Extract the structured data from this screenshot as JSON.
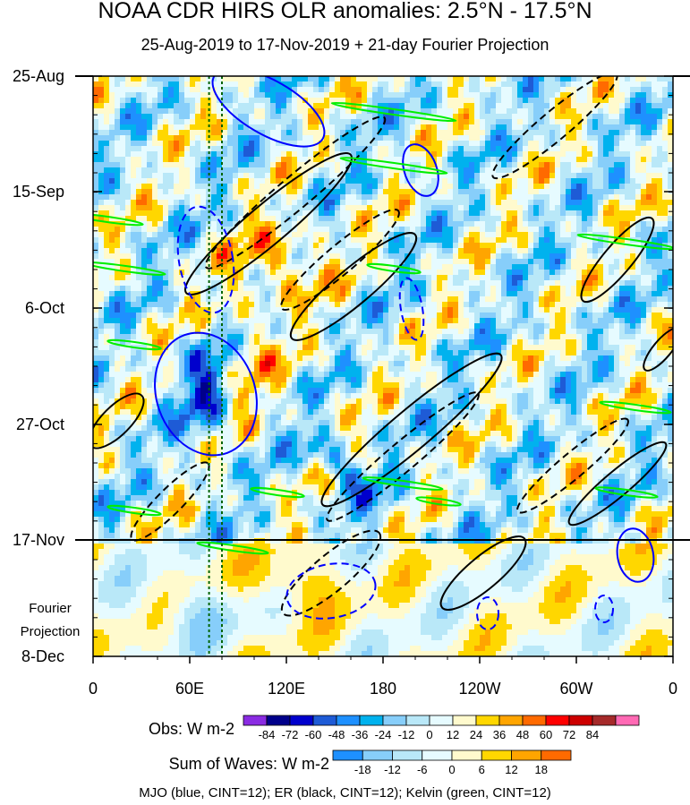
{
  "chart_data": {
    "type": "heatmap",
    "title": "NOAA CDR HIRS OLR anomalies: 2.5°N - 17.5°N",
    "subtitle": "25-Aug-2019 to 17-Nov-2019 + 21-day Fourier Projection",
    "x_axis": {
      "ticks": [
        "0",
        "60E",
        "120E",
        "180",
        "120W",
        "60W",
        "0"
      ],
      "tick_values_deg_east": [
        0,
        60,
        120,
        180,
        240,
        300,
        360
      ],
      "xlim": [
        0,
        360
      ]
    },
    "y_axis": {
      "ticks": [
        "25-Aug",
        "15-Sep",
        "6-Oct",
        "27-Oct",
        "17-Nov",
        "8-Dec"
      ],
      "direction": "time increases downward",
      "projection_label": "Fourier Projection"
    },
    "observed_end_date": "17-Nov",
    "reference_lines_deg_east": [
      72,
      80
    ],
    "obs_colorbar": {
      "title": "Obs: W m-2",
      "levels": [
        "-84",
        "-72",
        "-60",
        "-48",
        "-36",
        "-24",
        "-12",
        "0",
        "12",
        "24",
        "36",
        "48",
        "60",
        "72",
        "84"
      ],
      "colors": [
        "#8a2be2",
        "#00008b",
        "#0000cd",
        "#1e5bd6",
        "#1e90ff",
        "#00b2ee",
        "#87cefa",
        "#b9e8f8",
        "#e6fbff",
        "#fffacd",
        "#ffd700",
        "#ffa500",
        "#ff6a00",
        "#ff0000",
        "#cd0000",
        "#a52a2a",
        "#ff69b4"
      ]
    },
    "waves_colorbar": {
      "title": "Sum of Waves: W m-2",
      "levels": [
        "-18",
        "-12",
        "-6",
        "0",
        "6",
        "12",
        "18"
      ],
      "colors": [
        "#1e90ff",
        "#87cefa",
        "#b9e8f8",
        "#e6fbff",
        "#fffacd",
        "#ffd700",
        "#ffa500",
        "#ff6a00"
      ]
    },
    "contours": [
      {
        "name": "MJO",
        "color": "#0000ff"
      },
      {
        "name": "ER",
        "color": "#000000"
      },
      {
        "name": "Kelvin",
        "color": "#00ee00"
      }
    ],
    "footer": "MJO (blue, CINT=12); ER (black, CINT=12); Kelvin (green, CINT=12)"
  }
}
